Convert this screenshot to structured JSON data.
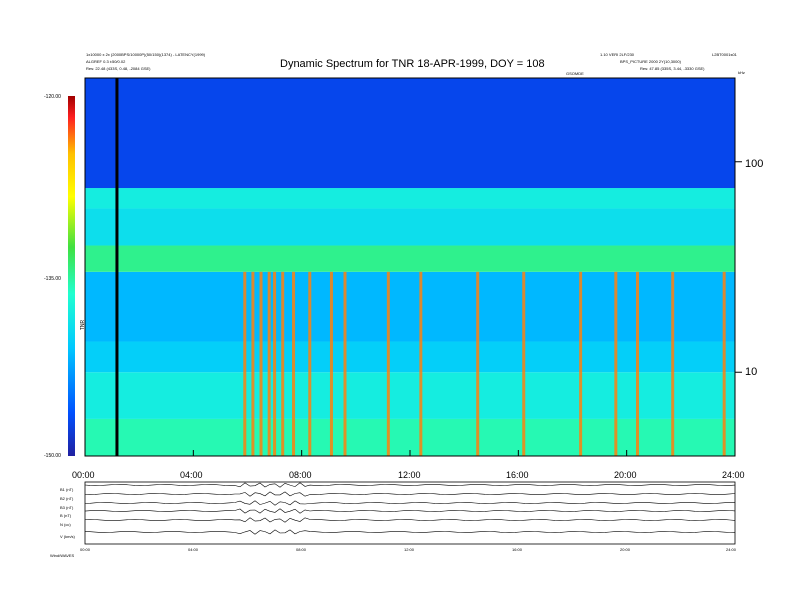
{
  "header": {
    "left_line1": "1x10000 x 2x (2000BPS/10000P)(50/150)(1374) - LATENCY(1999)",
    "left_line2": "ALGREF 0.3 ±50/0.02",
    "left_line3": "Res:     22.48 (433S, 0.48, -2084 GSE)",
    "right_line1": "1.10 VERI 2LF/230",
    "right_line2": "BPS_PICTURE 2000 2Y(10,3000)",
    "right_line3": "Res:     47.85 (335S, 3.44, -3330 GSE)",
    "right_corner": "L2BT0001s01",
    "right_small": "kHz",
    "mid_small": "GSOMDE"
  },
  "chart_data": {
    "type": "heatmap",
    "title": "Dynamic Spectrum for TNR 18-APR-1999, DOY = 108",
    "x_ticks": [
      "00:00",
      "04:00",
      "08:00",
      "12:00",
      "16:00",
      "20:00",
      "24:00"
    ],
    "x_range_hours": [
      0,
      24
    ],
    "y_ticks": [
      "100",
      "10"
    ],
    "y_scale": "log",
    "y_range_khz": [
      4,
      250
    ],
    "colorbar_ticks": [
      "-120.00",
      "-135.00",
      "-150.00"
    ],
    "colorbar_range": [
      -150,
      -120
    ],
    "colorbar_label": "TNR",
    "colorscale": [
      "#2020a0",
      "#0050ff",
      "#00c8ff",
      "#20ffd0",
      "#40e040",
      "#ffff00",
      "#ffc000",
      "#ff2020",
      "#a00000"
    ],
    "bands": [
      {
        "f_lo": 4,
        "f_hi": 6,
        "level": -138
      },
      {
        "f_lo": 6,
        "f_hi": 10,
        "level": -140
      },
      {
        "f_lo": 10,
        "f_hi": 14,
        "level": -142
      },
      {
        "f_lo": 14,
        "f_hi": 30,
        "level": -143
      },
      {
        "f_lo": 30,
        "f_hi": 40,
        "level": -137
      },
      {
        "f_lo": 40,
        "f_hi": 60,
        "level": -141
      },
      {
        "f_lo": 60,
        "f_hi": 75,
        "level": -140
      },
      {
        "f_lo": 75,
        "f_hi": 250,
        "level": -147
      }
    ],
    "vertical_bursts_hours": [
      5.9,
      6.2,
      6.5,
      6.8,
      7.0,
      7.3,
      7.7,
      8.3,
      9.1,
      9.6,
      11.2,
      12.4,
      14.5,
      16.2,
      18.3,
      19.6,
      20.4,
      21.7,
      23.6
    ],
    "black_line_hour": 1.18
  },
  "bottom_panels": {
    "labels": [
      "B1 (nT)",
      "B2 (nT)",
      "B3 (nT)",
      "B (nT)",
      "N (cc)",
      "V (km/s)"
    ],
    "x_ticks": [
      "00:00",
      "04:00",
      "08:00",
      "12:00",
      "16:00",
      "20:00",
      "24:00"
    ],
    "footer": "Wind/WAVES"
  }
}
